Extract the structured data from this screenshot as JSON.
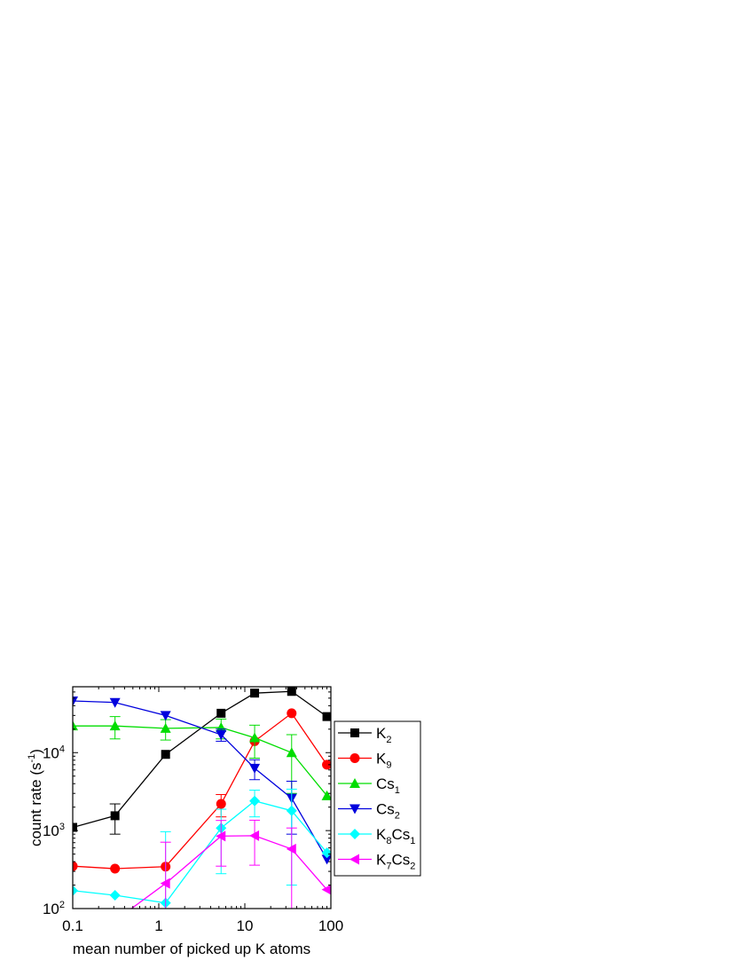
{
  "chart_data": {
    "type": "line",
    "xlabel": "mean number of picked up K atoms",
    "ylabel": "count rate (s",
    "ylabel_sup": "-1",
    "ylabel_end": ")",
    "x_scale": "log",
    "y_scale": "log",
    "xlim": [
      0.1,
      100
    ],
    "ylim": [
      100,
      70000
    ],
    "x_ticks": [
      {
        "value": 0.1,
        "label": "0.1"
      },
      {
        "value": 1,
        "label": "1"
      },
      {
        "value": 10,
        "label": "10"
      },
      {
        "value": 100,
        "label": "100"
      }
    ],
    "y_ticks": [
      {
        "value": 100,
        "base": "10",
        "exp": "2"
      },
      {
        "value": 1000,
        "base": "10",
        "exp": "3"
      },
      {
        "value": 10000,
        "base": "10",
        "exp": "4"
      }
    ],
    "grid": false,
    "legend_position": "right",
    "series": [
      {
        "label": "K",
        "sub": "2",
        "color": "#000000",
        "marker": "square",
        "x": [
          0.1,
          0.31,
          1.2,
          5.3,
          13,
          35,
          90
        ],
        "y": [
          1100,
          1550,
          9500,
          32000,
          58000,
          61000,
          29000
        ],
        "err": [
          0,
          650,
          0,
          0,
          0,
          0,
          0
        ]
      },
      {
        "label": "K",
        "sub": "9",
        "color": "#ff0000",
        "marker": "circle",
        "x": [
          0.1,
          0.31,
          1.2,
          5.3,
          13,
          35,
          90
        ],
        "y": [
          350,
          325,
          345,
          2200,
          14000,
          32000,
          7000
        ],
        "err": [
          0,
          0,
          0,
          700,
          0,
          0,
          0
        ]
      },
      {
        "label": "Cs",
        "sub": "1",
        "color": "#00dd00",
        "marker": "triangle-up",
        "x": [
          0.1,
          0.31,
          1.2,
          5.3,
          13,
          35,
          90
        ],
        "y": [
          22000,
          22000,
          20500,
          21000,
          15500,
          10000,
          2800
        ],
        "err": [
          0,
          7000,
          6000,
          6000,
          7000,
          7000,
          0
        ]
      },
      {
        "label": "Cs",
        "sub": "2",
        "color": "#0000dd",
        "marker": "triangle-down",
        "x": [
          0.1,
          0.31,
          1.2,
          5.3,
          13,
          35,
          90
        ],
        "y": [
          46000,
          44000,
          30000,
          17000,
          6300,
          2600,
          430
        ],
        "err": [
          0,
          0,
          0,
          3000,
          1800,
          1700,
          0
        ]
      },
      {
        "label": "K",
        "sub": "8",
        "label2": "Cs",
        "sub2": "1",
        "color": "#00ffff",
        "marker": "diamond",
        "x": [
          0.1,
          0.31,
          1.2,
          5.3,
          13,
          35,
          90
        ],
        "y": [
          170,
          148,
          118,
          1080,
          2400,
          1800,
          520
        ],
        "err": [
          0,
          0,
          850,
          800,
          900,
          1600,
          0
        ]
      },
      {
        "label": "K",
        "sub": "7",
        "label2": "Cs",
        "sub2": "2",
        "color": "#ff00ff",
        "marker": "triangle-left",
        "x": [
          0.31,
          1.2,
          5.3,
          13,
          35,
          90
        ],
        "y": [
          70,
          210,
          850,
          860,
          580,
          175
        ],
        "err": [
          0,
          500,
          500,
          500,
          500,
          0
        ]
      }
    ]
  }
}
